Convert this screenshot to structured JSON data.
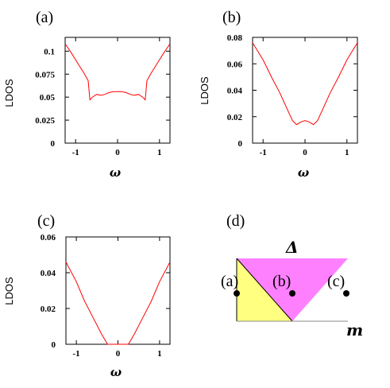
{
  "chart_data": [
    {
      "type": "line",
      "panel_label": "(a)",
      "xlabel": "ω",
      "ylabel": "LDOS",
      "xlim": [
        -1.25,
        1.25
      ],
      "ylim": [
        0,
        0.115
      ],
      "xticks": [
        -1,
        0,
        1
      ],
      "yticks": [
        0,
        0.025,
        0.05,
        0.075,
        0.1
      ],
      "ytick_labels": [
        "0",
        "0.025",
        "0.05",
        "0.075",
        "0.1"
      ],
      "line_color": "#ff0000",
      "x": [
        -1.25,
        -1.1,
        -0.95,
        -0.8,
        -0.7,
        -0.66,
        -0.6,
        -0.5,
        -0.4,
        -0.3,
        -0.2,
        -0.1,
        0,
        0.1,
        0.2,
        0.3,
        0.4,
        0.5,
        0.6,
        0.66,
        0.7,
        0.8,
        0.95,
        1.1,
        1.25
      ],
      "y": [
        0.108,
        0.098,
        0.087,
        0.076,
        0.068,
        0.047,
        0.05,
        0.053,
        0.052,
        0.053,
        0.055,
        0.056,
        0.056,
        0.056,
        0.055,
        0.053,
        0.052,
        0.053,
        0.05,
        0.047,
        0.068,
        0.076,
        0.087,
        0.098,
        0.108
      ]
    },
    {
      "type": "line",
      "panel_label": "(b)",
      "xlabel": "ω",
      "ylabel": "LDOS",
      "xlim": [
        -1.25,
        1.25
      ],
      "ylim": [
        0,
        0.08
      ],
      "xticks": [
        -1,
        0,
        1
      ],
      "yticks": [
        0,
        0.02,
        0.04,
        0.06,
        0.08
      ],
      "ytick_labels": [
        "0",
        "0.02",
        "0.04",
        "0.06",
        "0.08"
      ],
      "line_color": "#ff0000",
      "x": [
        -1.25,
        -1.0,
        -0.8,
        -0.6,
        -0.4,
        -0.3,
        -0.2,
        -0.1,
        0,
        0.1,
        0.2,
        0.3,
        0.4,
        0.6,
        0.8,
        1.0,
        1.25
      ],
      "y": [
        0.076,
        0.063,
        0.05,
        0.038,
        0.024,
        0.017,
        0.014,
        0.016,
        0.017,
        0.016,
        0.014,
        0.017,
        0.024,
        0.038,
        0.05,
        0.063,
        0.076
      ]
    },
    {
      "type": "line",
      "panel_label": "(c)",
      "xlabel": "ω",
      "ylabel": "LDOS",
      "xlim": [
        -1.25,
        1.25
      ],
      "ylim": [
        0,
        0.06
      ],
      "xticks": [
        -1,
        0,
        1
      ],
      "yticks": [
        0,
        0.02,
        0.04,
        0.06
      ],
      "ytick_labels": [
        "0",
        "0.02",
        "0.04",
        "0.06"
      ],
      "line_color": "#ff0000",
      "x": [
        -1.25,
        -1.0,
        -0.8,
        -0.6,
        -0.4,
        -0.25,
        -0.1,
        0,
        0.1,
        0.25,
        0.4,
        0.6,
        0.8,
        1.0,
        1.25
      ],
      "y": [
        0.046,
        0.035,
        0.024,
        0.015,
        0.006,
        0.0,
        0.0,
        0.0,
        0.0,
        0.0,
        0.006,
        0.015,
        0.024,
        0.035,
        0.046
      ]
    }
  ],
  "phase_diagram": {
    "panel_label": "(d)",
    "top_label": "Δ",
    "axis_label": "m",
    "point_labels": [
      "(a)",
      "(b)",
      "(c)"
    ],
    "colors": {
      "magenta_region": "#ff80ff",
      "yellow_region": "#ffff80",
      "boundary": "#000000",
      "axis_line": "#888888",
      "points": "#000000"
    }
  }
}
